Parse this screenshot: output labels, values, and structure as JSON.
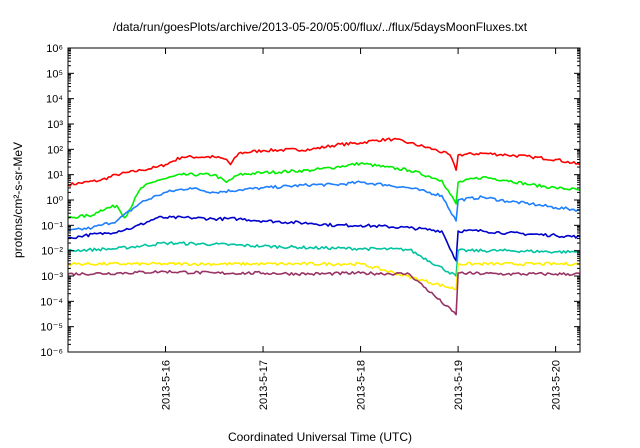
{
  "chart_data": {
    "type": "line",
    "title": "/data/run/goesPlots/archive/2013-05-20/05:00/flux/../flux/5daysMoonFluxes.txt",
    "xlabel": "Coordinated Universal Time (UTC)",
    "ylabel": "protons/cm²-s-sr-MeV",
    "yscale": "log",
    "ylim": [
      1e-06,
      1000000.0
    ],
    "ytick_labels": [
      "10⁻⁶",
      "10⁻⁵",
      "10⁻⁴",
      "10⁻³",
      "10⁻²",
      "10⁻¹",
      "10⁰",
      "10¹",
      "10²",
      "10³",
      "10⁴",
      "10⁵",
      "10⁶"
    ],
    "xlim": [
      "2013-05-15 00:00",
      "2013-05-20 06:00"
    ],
    "xtick_labels": [
      "2013-5-16",
      "2013-5-17",
      "2013-5-18",
      "2013-5-19",
      "2013-5-20"
    ],
    "grid": false,
    "series": [
      {
        "color": "#ff0000",
        "x": [
          "2013-05-15 00:00",
          "2013-05-15 08:00",
          "2013-05-15 12:00",
          "2013-05-15 18:00",
          "2013-05-15 22:00",
          "2013-05-16 00:00",
          "2013-05-16 04:00",
          "2013-05-16 12:00",
          "2013-05-16 15:00",
          "2013-05-16 16:00",
          "2013-05-16 18:00",
          "2013-05-17 00:00",
          "2013-05-17 12:00",
          "2013-05-17 18:00",
          "2013-05-18 00:00",
          "2013-05-18 04:00",
          "2013-05-18 08:00",
          "2013-05-18 12:00",
          "2013-05-18 18:00",
          "2013-05-18 22:00",
          "2013-05-18 23:30",
          "2013-05-19 00:00",
          "2013-05-19 06:00",
          "2013-05-19 12:00",
          "2013-05-19 18:00",
          "2013-05-20 00:00",
          "2013-05-20 06:00"
        ],
        "values": [
          4,
          6,
          10,
          15,
          20,
          25,
          50,
          50,
          40,
          25,
          70,
          90,
          100,
          150,
          180,
          230,
          250,
          180,
          100,
          60,
          15,
          60,
          70,
          60,
          50,
          40,
          25
        ]
      },
      {
        "color": "#00ee00",
        "x": [
          "2013-05-15 00:00",
          "2013-05-15 06:00",
          "2013-05-15 08:00",
          "2013-05-15 12:00",
          "2013-05-15 14:00",
          "2013-05-15 18:00",
          "2013-05-15 22:00",
          "2013-05-16 00:00",
          "2013-05-16 04:00",
          "2013-05-16 12:00",
          "2013-05-16 15:00",
          "2013-05-16 18:00",
          "2013-05-17 00:00",
          "2013-05-17 12:00",
          "2013-05-17 18:00",
          "2013-05-18 00:00",
          "2013-05-18 06:00",
          "2013-05-18 12:00",
          "2013-05-18 20:00",
          "2013-05-18 23:30",
          "2013-05-19 00:00",
          "2013-05-19 06:00",
          "2013-05-19 12:00",
          "2013-05-19 18:00",
          "2013-05-20 00:00",
          "2013-05-20 06:00"
        ],
        "values": [
          0.2,
          0.25,
          0.4,
          0.6,
          0.2,
          3,
          6,
          7,
          10,
          10,
          5,
          10,
          12,
          15,
          20,
          28,
          20,
          15,
          6,
          0.7,
          5,
          8,
          6,
          4,
          3,
          2.5
        ]
      },
      {
        "color": "#1e7fff",
        "x": [
          "2013-05-15 00:00",
          "2013-05-15 06:00",
          "2013-05-15 08:00",
          "2013-05-15 12:00",
          "2013-05-15 18:00",
          "2013-05-15 22:00",
          "2013-05-16 00:00",
          "2013-05-16 06:00",
          "2013-05-16 12:00",
          "2013-05-16 18:00",
          "2013-05-17 00:00",
          "2013-05-17 12:00",
          "2013-05-17 18:00",
          "2013-05-18 00:00",
          "2013-05-18 06:00",
          "2013-05-18 12:00",
          "2013-05-18 20:00",
          "2013-05-18 23:30",
          "2013-05-19 00:00",
          "2013-05-19 06:00",
          "2013-05-19 12:00",
          "2013-05-19 18:00",
          "2013-05-20 00:00",
          "2013-05-20 06:00"
        ],
        "values": [
          0.06,
          0.08,
          0.1,
          0.15,
          0.8,
          1.5,
          2,
          3,
          2,
          2.5,
          3,
          4,
          4,
          5,
          4,
          3,
          1.5,
          0.15,
          1,
          1.3,
          0.9,
          0.7,
          0.5,
          0.4
        ]
      },
      {
        "color": "#0000cd",
        "x": [
          "2013-05-15 00:00",
          "2013-05-15 04:00",
          "2013-05-15 10:00",
          "2013-05-15 16:00",
          "2013-05-15 22:00",
          "2013-05-16 00:00",
          "2013-05-16 06:00",
          "2013-05-16 12:00",
          "2013-05-16 18:00",
          "2013-05-17 00:00",
          "2013-05-17 12:00",
          "2013-05-17 18:00",
          "2013-05-18 00:00",
          "2013-05-18 12:00",
          "2013-05-18 20:00",
          "2013-05-18 23:30",
          "2013-05-19 00:00",
          "2013-05-19 06:00",
          "2013-05-19 12:00",
          "2013-05-20 00:00",
          "2013-05-20 06:00"
        ],
        "values": [
          0.03,
          0.04,
          0.05,
          0.08,
          0.2,
          0.2,
          0.2,
          0.18,
          0.18,
          0.15,
          0.12,
          0.1,
          0.1,
          0.08,
          0.06,
          0.004,
          0.06,
          0.06,
          0.05,
          0.04,
          0.035
        ]
      },
      {
        "color": "#00c4a0",
        "x": [
          "2013-05-15 00:00",
          "2013-05-15 12:00",
          "2013-05-16 00:00",
          "2013-05-16 12:00",
          "2013-05-17 00:00",
          "2013-05-17 12:00",
          "2013-05-18 00:00",
          "2013-05-18 12:00",
          "2013-05-18 23:30",
          "2013-05-19 00:00",
          "2013-05-19 12:00",
          "2013-05-20 00:00",
          "2013-05-20 06:00"
        ],
        "values": [
          0.01,
          0.012,
          0.02,
          0.018,
          0.015,
          0.013,
          0.012,
          0.011,
          0.001,
          0.01,
          0.01,
          0.009,
          0.009
        ]
      },
      {
        "color": "#ffee00",
        "x": [
          "2013-05-15 00:00",
          "2013-05-16 00:00",
          "2013-05-17 00:00",
          "2013-05-18 00:00",
          "2013-05-18 23:30",
          "2013-05-19 00:00",
          "2013-05-20 00:00",
          "2013-05-20 06:00"
        ],
        "values": [
          0.003,
          0.003,
          0.003,
          0.003,
          0.0003,
          0.003,
          0.003,
          0.003
        ]
      },
      {
        "color": "#993366",
        "x": [
          "2013-05-15 00:00",
          "2013-05-15 12:00",
          "2013-05-16 00:00",
          "2013-05-16 12:00",
          "2013-05-17 00:00",
          "2013-05-17 12:00",
          "2013-05-18 00:00",
          "2013-05-18 12:00",
          "2013-05-18 23:30",
          "2013-05-19 00:00",
          "2013-05-19 12:00",
          "2013-05-20 00:00",
          "2013-05-20 06:00"
        ],
        "values": [
          0.0012,
          0.0013,
          0.0015,
          0.0013,
          0.0013,
          0.0012,
          0.0013,
          0.0012,
          3e-05,
          0.0013,
          0.0012,
          0.0012,
          0.0012
        ]
      }
    ]
  }
}
